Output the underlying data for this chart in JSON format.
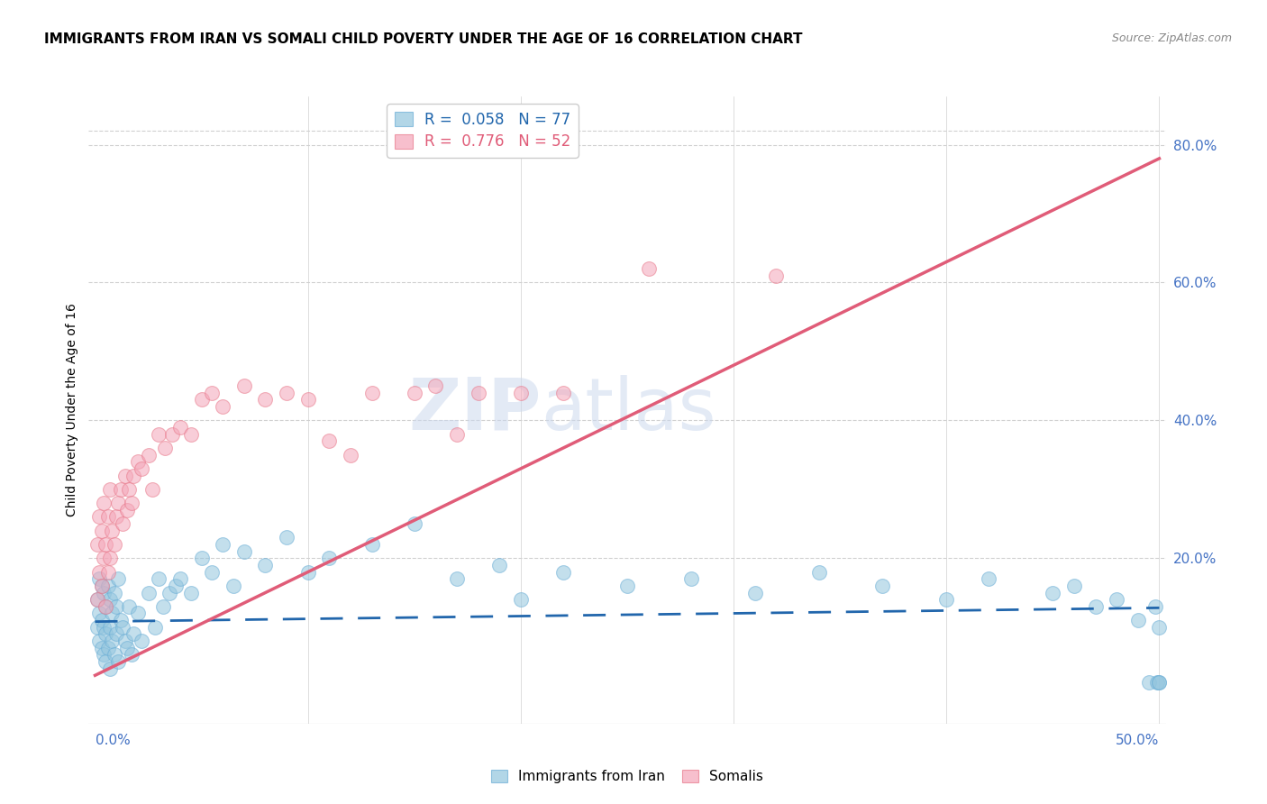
{
  "title": "IMMIGRANTS FROM IRAN VS SOMALI CHILD POVERTY UNDER THE AGE OF 16 CORRELATION CHART",
  "source": "Source: ZipAtlas.com",
  "ylabel": "Child Poverty Under the Age of 16",
  "xlim": [
    0.0,
    0.5
  ],
  "ylim": [
    0.0,
    0.85
  ],
  "watermark_line1": "ZIP",
  "watermark_line2": "atlas",
  "legend_r_labels": [
    "R =  0.058   N = 77",
    "R =  0.776   N = 52"
  ],
  "legend_labels": [
    "Immigrants from Iran",
    "Somalis"
  ],
  "iran_color": "#92c5de",
  "somali_color": "#f4a5b8",
  "iran_edge_color": "#6baed6",
  "somali_edge_color": "#e8788a",
  "iran_trend_color": "#2166ac",
  "somali_trend_color": "#e05c78",
  "iran_trend": [
    0.0,
    0.108,
    0.5,
    0.128
  ],
  "somali_trend": [
    0.0,
    0.03,
    0.5,
    0.78
  ],
  "right_yticks": [
    0.2,
    0.4,
    0.6,
    0.8
  ],
  "right_yticklabels": [
    "20.0%",
    "40.0%",
    "60.0%",
    "80.0%"
  ],
  "grid_yticks": [
    0.2,
    0.4,
    0.6,
    0.8
  ],
  "grid_color": "#d0d0d0",
  "title_fontsize": 11,
  "axis_label_color": "#4472c4",
  "tick_color": "#4472c4",
  "iran_scatter_x": [
    0.001,
    0.001,
    0.002,
    0.002,
    0.002,
    0.003,
    0.003,
    0.003,
    0.004,
    0.004,
    0.004,
    0.005,
    0.005,
    0.005,
    0.006,
    0.006,
    0.007,
    0.007,
    0.007,
    0.008,
    0.008,
    0.009,
    0.009,
    0.01,
    0.01,
    0.011,
    0.011,
    0.012,
    0.013,
    0.014,
    0.015,
    0.016,
    0.017,
    0.018,
    0.02,
    0.022,
    0.025,
    0.028,
    0.03,
    0.032,
    0.035,
    0.038,
    0.04,
    0.045,
    0.05,
    0.055,
    0.06,
    0.065,
    0.07,
    0.08,
    0.09,
    0.1,
    0.11,
    0.13,
    0.15,
    0.17,
    0.19,
    0.2,
    0.22,
    0.25,
    0.28,
    0.31,
    0.34,
    0.37,
    0.4,
    0.42,
    0.45,
    0.46,
    0.47,
    0.48,
    0.49,
    0.495,
    0.498,
    0.499,
    0.5,
    0.5,
    0.5
  ],
  "iran_scatter_y": [
    0.14,
    0.1,
    0.17,
    0.12,
    0.08,
    0.16,
    0.11,
    0.07,
    0.15,
    0.1,
    0.06,
    0.13,
    0.09,
    0.05,
    0.16,
    0.07,
    0.14,
    0.1,
    0.04,
    0.12,
    0.08,
    0.15,
    0.06,
    0.13,
    0.09,
    0.17,
    0.05,
    0.11,
    0.1,
    0.08,
    0.07,
    0.13,
    0.06,
    0.09,
    0.12,
    0.08,
    0.15,
    0.1,
    0.17,
    0.13,
    0.15,
    0.16,
    0.17,
    0.15,
    0.2,
    0.18,
    0.22,
    0.16,
    0.21,
    0.19,
    0.23,
    0.18,
    0.2,
    0.22,
    0.25,
    0.17,
    0.19,
    0.14,
    0.18,
    0.16,
    0.17,
    0.15,
    0.18,
    0.16,
    0.14,
    0.17,
    0.15,
    0.16,
    0.13,
    0.14,
    0.11,
    0.02,
    0.13,
    0.02,
    0.1,
    0.02,
    0.02
  ],
  "somali_scatter_x": [
    0.001,
    0.001,
    0.002,
    0.002,
    0.003,
    0.003,
    0.004,
    0.004,
    0.005,
    0.005,
    0.006,
    0.006,
    0.007,
    0.007,
    0.008,
    0.009,
    0.01,
    0.011,
    0.012,
    0.013,
    0.014,
    0.015,
    0.016,
    0.017,
    0.018,
    0.02,
    0.022,
    0.025,
    0.027,
    0.03,
    0.033,
    0.036,
    0.04,
    0.045,
    0.05,
    0.055,
    0.06,
    0.07,
    0.08,
    0.09,
    0.1,
    0.11,
    0.12,
    0.13,
    0.15,
    0.16,
    0.17,
    0.18,
    0.2,
    0.22,
    0.26,
    0.32
  ],
  "somali_scatter_y": [
    0.14,
    0.22,
    0.18,
    0.26,
    0.16,
    0.24,
    0.2,
    0.28,
    0.13,
    0.22,
    0.18,
    0.26,
    0.2,
    0.3,
    0.24,
    0.22,
    0.26,
    0.28,
    0.3,
    0.25,
    0.32,
    0.27,
    0.3,
    0.28,
    0.32,
    0.34,
    0.33,
    0.35,
    0.3,
    0.38,
    0.36,
    0.38,
    0.39,
    0.38,
    0.43,
    0.44,
    0.42,
    0.45,
    0.43,
    0.44,
    0.43,
    0.37,
    0.35,
    0.44,
    0.44,
    0.45,
    0.38,
    0.44,
    0.44,
    0.44,
    0.62,
    0.61
  ]
}
